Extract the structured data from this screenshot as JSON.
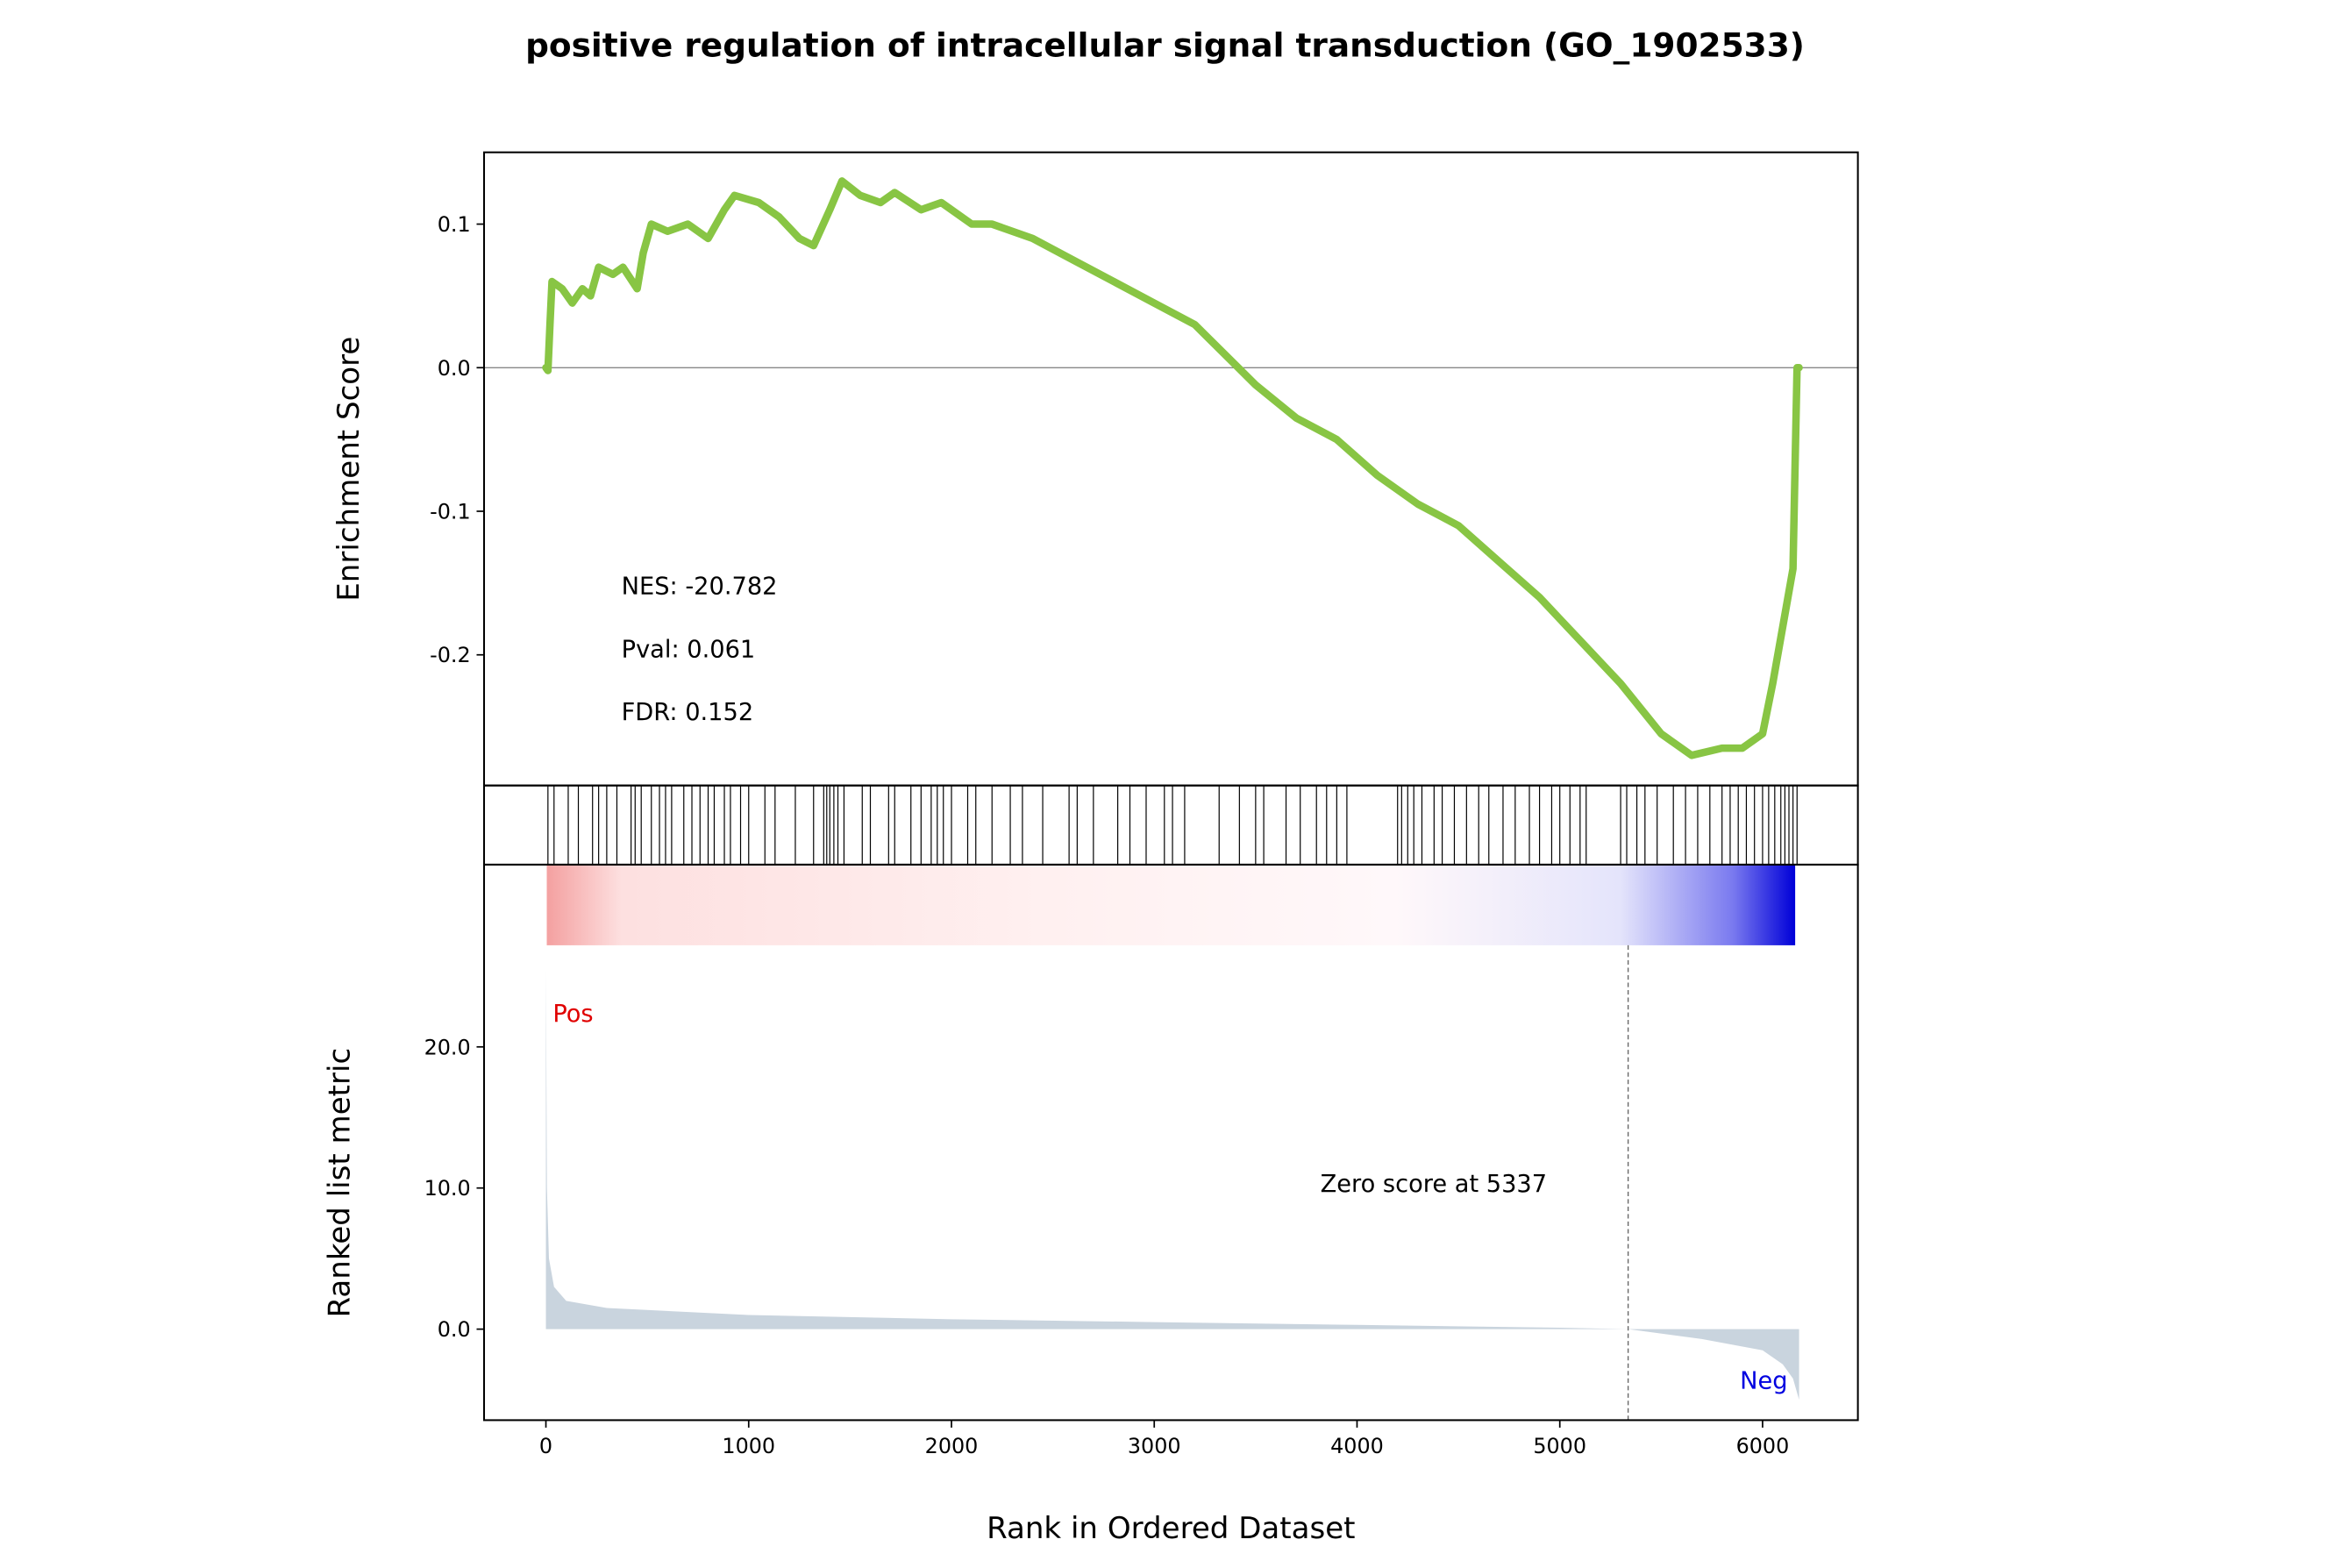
{
  "chart_data": [
    {
      "type": "line",
      "title": "positive regulation of intracellular signal transduction (GO_1902533)",
      "ylabel": "Enrichment Score",
      "color": "#88c544",
      "x": [
        0,
        10,
        20,
        30,
        80,
        130,
        180,
        220,
        260,
        330,
        380,
        450,
        480,
        520,
        600,
        700,
        800,
        880,
        930,
        1050,
        1150,
        1250,
        1320,
        1400,
        1460,
        1550,
        1650,
        1720,
        1850,
        1950,
        2100,
        2200,
        2400,
        2600,
        2800,
        3000,
        3200,
        3500,
        3700,
        3900,
        4100,
        4300,
        4500,
        4700,
        4900,
        5100,
        5300,
        5500,
        5650,
        5800,
        5900,
        6000,
        6050,
        6100,
        6150,
        6170,
        6180
      ],
      "values": [
        0.0,
        -0.002,
        0.03,
        0.06,
        0.055,
        0.045,
        0.055,
        0.05,
        0.07,
        0.065,
        0.07,
        0.055,
        0.08,
        0.1,
        0.095,
        0.1,
        0.09,
        0.11,
        0.12,
        0.115,
        0.105,
        0.09,
        0.085,
        0.11,
        0.13,
        0.12,
        0.115,
        0.122,
        0.11,
        0.115,
        0.1,
        0.1,
        0.09,
        0.075,
        0.06,
        0.045,
        0.03,
        -0.012,
        -0.035,
        -0.05,
        -0.075,
        -0.095,
        -0.11,
        -0.135,
        -0.16,
        -0.19,
        -0.22,
        -0.255,
        -0.27,
        -0.265,
        -0.265,
        -0.255,
        -0.22,
        -0.18,
        -0.14,
        0.0,
        0.0
      ],
      "xlim": [
        -305,
        6470
      ],
      "ylim": [
        -0.291,
        0.15
      ],
      "yticks": [
        0.1,
        {
          "value": 0,
          "label": "0.0"
        },
        -0.1,
        -0.2
      ],
      "annotations": [
        "NES: -20.782",
        "Pval: 0.061",
        "FDR: 0.152"
      ]
    },
    {
      "type": "rug",
      "xlim": [
        -305,
        6470
      ],
      "hits": [
        10,
        40,
        110,
        160,
        230,
        260,
        300,
        350,
        420,
        440,
        470,
        520,
        560,
        590,
        620,
        680,
        720,
        760,
        800,
        830,
        880,
        910,
        960,
        1000,
        1080,
        1130,
        1230,
        1320,
        1370,
        1385,
        1400,
        1420,
        1440,
        1470,
        1560,
        1600,
        1690,
        1720,
        1800,
        1850,
        1900,
        1930,
        1960,
        2000,
        2080,
        2120,
        2200,
        2290,
        2350,
        2450,
        2580,
        2620,
        2700,
        2820,
        2880,
        2960,
        3050,
        3090,
        3150,
        3320,
        3420,
        3500,
        3540,
        3650,
        3720,
        3800,
        3850,
        3900,
        3950,
        4200,
        4220,
        4250,
        4280,
        4320,
        4380,
        4420,
        4480,
        4540,
        4600,
        4650,
        4720,
        4780,
        4850,
        4900,
        4960,
        5000,
        5050,
        5100,
        5130,
        5300,
        5330,
        5380,
        5420,
        5480,
        5560,
        5620,
        5680,
        5740,
        5800,
        5840,
        5880,
        5920,
        5960,
        6000,
        6030,
        6060,
        6090,
        6110,
        6130,
        6150,
        6170
      ]
    },
    {
      "type": "area",
      "ylabel": "Ranked list metric",
      "xlabel": "Rank in Ordered Dataset",
      "color": "#c9d4de",
      "x": [
        0,
        5,
        15,
        40,
        100,
        300,
        1000,
        2000,
        3000,
        4000,
        5000,
        5337,
        5700,
        6000,
        6100,
        6150,
        6180
      ],
      "values": [
        25.5,
        10,
        5,
        3,
        2,
        1.5,
        1,
        0.7,
        0.5,
        0.3,
        0.1,
        0,
        -0.7,
        -1.5,
        -2.5,
        -3.5,
        -5
      ],
      "xlim": [
        -305,
        6470
      ],
      "ylim": [
        -6.45,
        27.2
      ],
      "xticks": [
        0,
        1000,
        2000,
        3000,
        4000,
        5000,
        6000
      ],
      "yticks": [
        {
          "value": 0,
          "label": "0.0"
        },
        {
          "value": 10,
          "label": "10.0"
        },
        {
          "value": 20,
          "label": "20.0"
        }
      ],
      "zero_rank": 5337,
      "annotations": [
        "Pos",
        "Neg",
        "Zero score at 5337"
      ]
    }
  ]
}
